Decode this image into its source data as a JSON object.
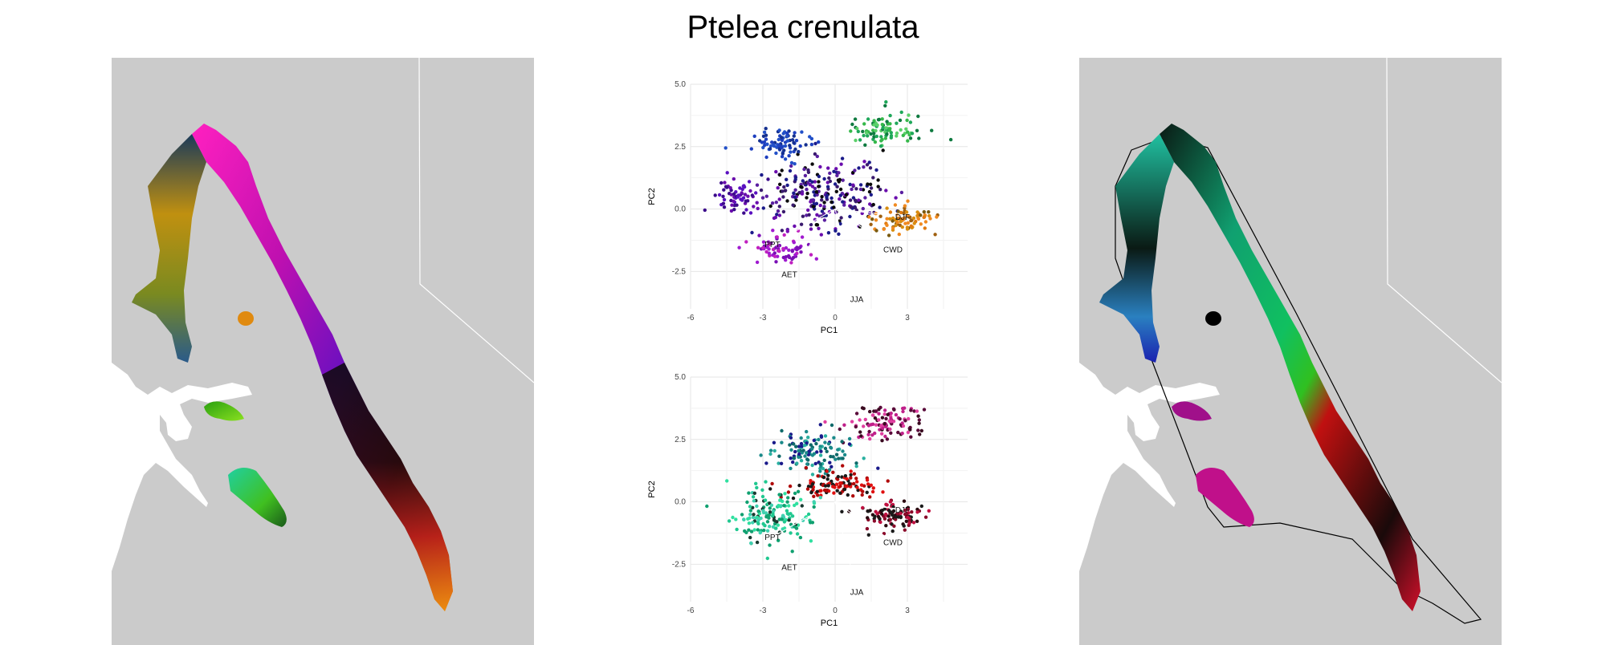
{
  "title": "Ptelea crenulata",
  "colors": {
    "land": "#cbcbcb",
    "water": "#ffffff",
    "grid": "#e6e6e6"
  },
  "chart_data": [
    {
      "type": "scatter",
      "xlabel": "PC1",
      "ylabel": "PC2",
      "xlim": [
        -6,
        5.5
      ],
      "ylim": [
        -4,
        5
      ],
      "xticks": [
        -6,
        -3,
        0,
        3
      ],
      "yticks": [
        -2.5,
        0.0,
        2.5,
        5.0
      ],
      "xtick_labels": [
        "-6",
        "-3",
        "0",
        "3"
      ],
      "ytick_labels": [
        "-2.5",
        "0.0",
        "2.5",
        "5.0"
      ],
      "grid": true,
      "loadings": [
        {
          "name": "DJF",
          "x": 2.8,
          "y": -0.3
        },
        {
          "name": "CWD",
          "x": 2.4,
          "y": -1.6
        },
        {
          "name": "JJA",
          "x": 0.9,
          "y": -3.6
        },
        {
          "name": "AET",
          "x": -1.9,
          "y": -2.6
        },
        {
          "name": "PPT",
          "x": -2.6,
          "y": -1.4
        }
      ],
      "clusters": [
        {
          "cx": -0.5,
          "cy": 0.5,
          "sx": 2.2,
          "sy": 1.3,
          "n": 260,
          "colors": [
            "#1b1b8a",
            "#3a1a6e",
            "#0a0a0a",
            "#5a1fa0",
            "#6a0dad"
          ]
        },
        {
          "cx": -2.3,
          "cy": 2.6,
          "sx": 1.0,
          "sy": 0.6,
          "n": 80,
          "colors": [
            "#1e3fbf",
            "#15308f",
            "#2250c8"
          ]
        },
        {
          "cx": -4.2,
          "cy": 0.5,
          "sx": 0.7,
          "sy": 0.7,
          "n": 60,
          "colors": [
            "#6a0dad",
            "#5a10c0",
            "#3b0a8a"
          ]
        },
        {
          "cx": -2.2,
          "cy": -1.6,
          "sx": 1.1,
          "sy": 0.5,
          "n": 70,
          "colors": [
            "#a01ad0",
            "#7a0fb5",
            "#c020c0"
          ]
        },
        {
          "cx": 2.0,
          "cy": 3.2,
          "sx": 1.3,
          "sy": 0.6,
          "n": 90,
          "colors": [
            "#1fa85a",
            "#35b84a",
            "#0f7a40",
            "#5bd06a"
          ]
        },
        {
          "cx": 2.8,
          "cy": -0.4,
          "sx": 1.2,
          "sy": 0.5,
          "n": 90,
          "colors": [
            "#d98e10",
            "#e07a10",
            "#a06010",
            "#f08a20",
            "#7a5a10"
          ]
        }
      ]
    },
    {
      "type": "scatter",
      "xlabel": "PC1",
      "ylabel": "PC2",
      "xlim": [
        -6,
        5.5
      ],
      "ylim": [
        -4,
        5
      ],
      "xticks": [
        -6,
        -3,
        0,
        3
      ],
      "yticks": [
        -2.5,
        0.0,
        2.5,
        5.0
      ],
      "xtick_labels": [
        "-6",
        "-3",
        "0",
        "3"
      ],
      "ytick_labels": [
        "-2.5",
        "0.0",
        "2.5",
        "5.0"
      ],
      "grid": true,
      "loadings": [
        {
          "name": "DJF",
          "x": 2.8,
          "y": -0.3
        },
        {
          "name": "CWD",
          "x": 2.4,
          "y": -1.6
        },
        {
          "name": "JJA",
          "x": 0.9,
          "y": -3.6
        },
        {
          "name": "AET",
          "x": -1.9,
          "y": -2.6
        },
        {
          "name": "PPT",
          "x": -2.6,
          "y": -1.4
        }
      ],
      "clusters": [
        {
          "cx": 2.0,
          "cy": 3.2,
          "sx": 1.4,
          "sy": 0.6,
          "n": 110,
          "colors": [
            "#5a0a3a",
            "#c0208a",
            "#e040a0",
            "#3a0a20"
          ]
        },
        {
          "cx": -1.0,
          "cy": 2.0,
          "sx": 1.6,
          "sy": 0.8,
          "n": 130,
          "colors": [
            "#1a8a8a",
            "#0f6a6a",
            "#2ab0a0",
            "#1a1a8a"
          ]
        },
        {
          "cx": 0.0,
          "cy": 0.7,
          "sx": 1.8,
          "sy": 0.5,
          "n": 110,
          "colors": [
            "#e01010",
            "#b00a0a",
            "#1a1a1a"
          ]
        },
        {
          "cx": -2.7,
          "cy": -0.6,
          "sx": 1.6,
          "sy": 1.0,
          "n": 160,
          "colors": [
            "#20c890",
            "#30e0a0",
            "#10a070",
            "#1a3a30",
            "#40d0b0"
          ]
        },
        {
          "cx": 2.6,
          "cy": -0.5,
          "sx": 1.3,
          "sy": 0.5,
          "n": 100,
          "colors": [
            "#8a0a2a",
            "#c01040",
            "#2a0a10",
            "#1a1a1a"
          ]
        }
      ]
    }
  ]
}
